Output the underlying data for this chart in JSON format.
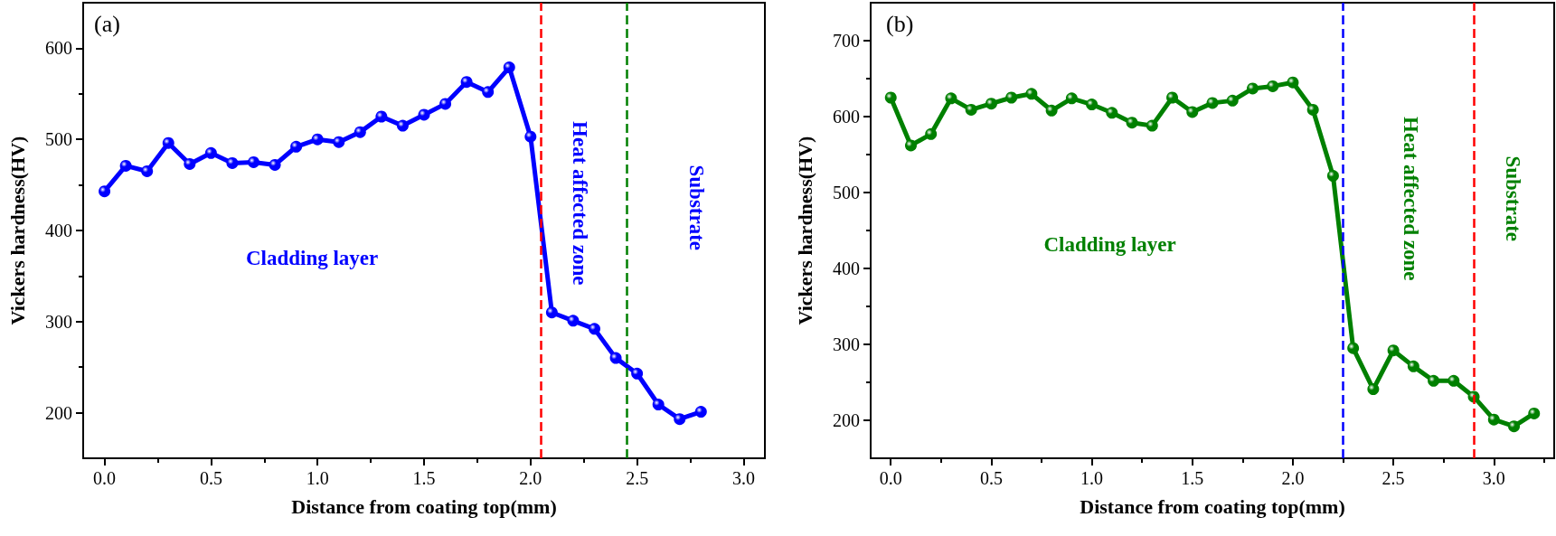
{
  "chart_data": [
    {
      "type": "line",
      "title": "(a)",
      "xlabel": "Distance from coating top(mm)",
      "ylabel": "Vickers hardness(HV)",
      "x": [
        0,
        0.1,
        0.2,
        0.3,
        0.4,
        0.5,
        0.6,
        0.7,
        0.8,
        0.9,
        1.0,
        1.1,
        1.2,
        1.3,
        1.4,
        1.5,
        1.6,
        1.7,
        1.8,
        1.9,
        2.0,
        2.1,
        2.2,
        2.3,
        2.4,
        2.5,
        2.6,
        2.7,
        2.8
      ],
      "series": [
        {
          "color": "#0000ff",
          "values": [
            443,
            471,
            465,
            496,
            473,
            485,
            474,
            475,
            472,
            492,
            500,
            497,
            508,
            525,
            515,
            527,
            539,
            563,
            552,
            579,
            503,
            310,
            301,
            292,
            260,
            243,
            209,
            193,
            201
          ]
        }
      ],
      "xlim": [
        -0.1,
        3.1
      ],
      "xticks": [
        {
          "value": 0,
          "label": "0.0"
        },
        0.5,
        {
          "value": 1,
          "label": "1.0"
        },
        1.5,
        {
          "value": 2,
          "label": "2.0"
        },
        2.5,
        {
          "value": 3,
          "label": "3.0"
        }
      ],
      "ylim": [
        150,
        650
      ],
      "yticks": [
        200,
        300,
        400,
        500,
        600
      ],
      "marker": "circle",
      "line_style": "solid",
      "ref_lines": [
        {
          "axis": "x",
          "value": 2.05,
          "color": "#ff0000",
          "line_style": "dashed"
        },
        {
          "axis": "x",
          "value": 2.45,
          "color": "#008000",
          "line_style": "dashed"
        }
      ],
      "annotations": [
        "Cladding layer",
        "Heat affected zone",
        "Substrate"
      ]
    },
    {
      "type": "line",
      "title": "(b)",
      "xlabel": "Distance from coating top(mm)",
      "ylabel": "Vickers hardness(HV)",
      "x": [
        0,
        0.1,
        0.2,
        0.3,
        0.4,
        0.5,
        0.6,
        0.7,
        0.8,
        0.9,
        1.0,
        1.1,
        1.2,
        1.3,
        1.4,
        1.5,
        1.6,
        1.7,
        1.8,
        1.9,
        2.0,
        2.1,
        2.2,
        2.3,
        2.4,
        2.5,
        2.6,
        2.7,
        2.8,
        2.9,
        3.0,
        3.1,
        3.2
      ],
      "series": [
        {
          "color": "#008000",
          "values": [
            625,
            562,
            577,
            624,
            609,
            617,
            625,
            630,
            608,
            624,
            616,
            605,
            592,
            588,
            625,
            606,
            618,
            621,
            637,
            640,
            645,
            609,
            522,
            295,
            241,
            292,
            271,
            252,
            252,
            231,
            201,
            192,
            209
          ]
        }
      ],
      "xlim": [
        -0.1,
        3.3
      ],
      "xticks": [
        {
          "value": 0,
          "label": "0.0"
        },
        0.5,
        {
          "value": 1,
          "label": "1.0"
        },
        1.5,
        {
          "value": 2,
          "label": "2.0"
        },
        2.5,
        {
          "value": 3,
          "label": "3.0"
        }
      ],
      "ylim": [
        150,
        750
      ],
      "yticks": [
        200,
        300,
        400,
        500,
        600,
        700
      ],
      "marker": "circle",
      "line_style": "solid",
      "ref_lines": [
        {
          "axis": "x",
          "value": 2.25,
          "color": "#0000ff",
          "line_style": "dashed"
        },
        {
          "axis": "x",
          "value": 2.9,
          "color": "#ff0000",
          "line_style": "dashed"
        }
      ],
      "annotations": [
        "Cladding layer",
        "Heat affected zone",
        "Substrate"
      ]
    }
  ]
}
